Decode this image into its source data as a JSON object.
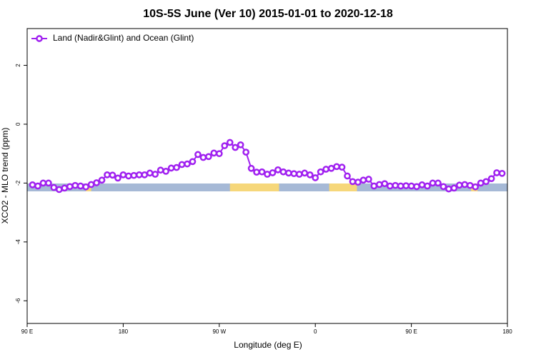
{
  "chart_data": {
    "type": "line",
    "title": "10S-5S June (Ver 10)   2015-01-01 to 2020-12-18",
    "x_label": "Longitude (deg E)",
    "y_label": "XCO2 - MLO trend (ppm)",
    "legend": "top-left",
    "xlim": [
      90,
      540
    ],
    "ylim": [
      -6.77,
      3.25
    ],
    "xticks": [
      {
        "value": 90,
        "label": "90 E"
      },
      {
        "value": 180,
        "label": "180"
      },
      {
        "value": 270,
        "label": "90 W"
      },
      {
        "value": 360,
        "label": "0"
      },
      {
        "value": 450,
        "label": "90 E"
      },
      {
        "value": 540,
        "label": "180"
      }
    ],
    "yticks": [
      2,
      0,
      -2,
      -4,
      -6
    ],
    "bands": [
      {
        "x": [
          90,
          540
        ],
        "color": "#a6b9d6"
      },
      {
        "x": [
          145,
          150
        ],
        "color": "#f6d77a"
      },
      {
        "x": [
          280,
          326
        ],
        "color": "#f6d77a"
      },
      {
        "x": [
          373,
          399
        ],
        "color": "#f6d77a"
      },
      {
        "x": [
          506,
          512
        ],
        "color": "#f6d77a"
      }
    ],
    "x": [
      95,
      100,
      105,
      110,
      115,
      120,
      125,
      130,
      135,
      140,
      145,
      150,
      155,
      160,
      165,
      170,
      175,
      180,
      185,
      190,
      195,
      200,
      205,
      210,
      215,
      220,
      225,
      230,
      235,
      240,
      245,
      250,
      255,
      260,
      265,
      270,
      275,
      280,
      285,
      290,
      295,
      300,
      305,
      310,
      315,
      320,
      325,
      330,
      335,
      340,
      345,
      350,
      355,
      360,
      365,
      370,
      375,
      380,
      385,
      390,
      395,
      400,
      405,
      410,
      415,
      420,
      425,
      430,
      435,
      440,
      445,
      450,
      455,
      460,
      465,
      470,
      475,
      480,
      485,
      490,
      495,
      500,
      505,
      510,
      515,
      520,
      525,
      530,
      535
    ],
    "series": [
      {
        "name": "Land (Nadir&Glint) and Ocean (Glint)",
        "color": "#a020f0",
        "values": [
          -2.06,
          -2.1,
          -2.0,
          -2.0,
          -2.15,
          -2.22,
          -2.17,
          -2.12,
          -2.08,
          -2.1,
          -2.13,
          -2.05,
          -1.99,
          -1.9,
          -1.72,
          -1.73,
          -1.83,
          -1.72,
          -1.76,
          -1.74,
          -1.72,
          -1.72,
          -1.66,
          -1.7,
          -1.56,
          -1.6,
          -1.49,
          -1.47,
          -1.37,
          -1.35,
          -1.27,
          -1.03,
          -1.13,
          -1.1,
          -0.98,
          -1.0,
          -0.73,
          -0.62,
          -0.79,
          -0.7,
          -0.95,
          -1.5,
          -1.63,
          -1.62,
          -1.7,
          -1.65,
          -1.55,
          -1.62,
          -1.66,
          -1.68,
          -1.7,
          -1.66,
          -1.72,
          -1.82,
          -1.62,
          -1.53,
          -1.5,
          -1.44,
          -1.46,
          -1.76,
          -1.95,
          -1.97,
          -1.9,
          -1.87,
          -2.1,
          -2.05,
          -2.02,
          -2.1,
          -2.08,
          -2.1,
          -2.09,
          -2.1,
          -2.12,
          -2.06,
          -2.1,
          -2.0,
          -2.0,
          -2.12,
          -2.2,
          -2.17,
          -2.07,
          -2.05,
          -2.08,
          -2.13,
          -2.0,
          -1.95,
          -1.85,
          -1.65,
          -1.67
        ]
      }
    ]
  }
}
